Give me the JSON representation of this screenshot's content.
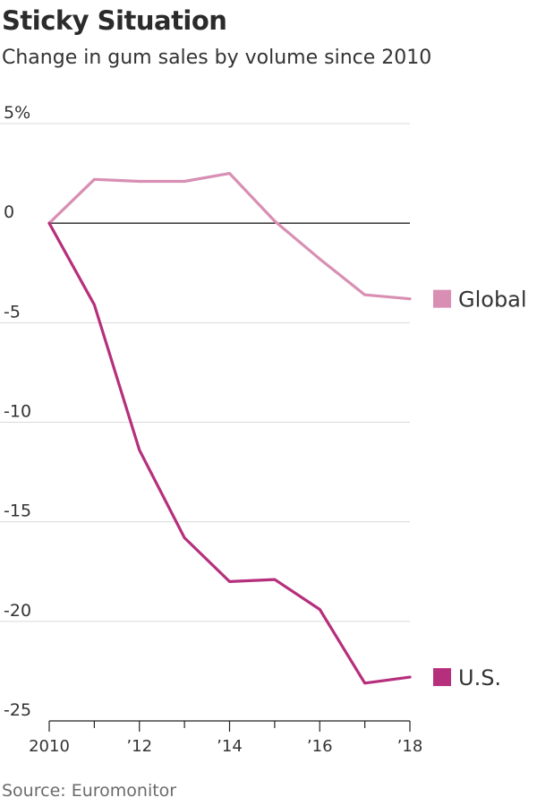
{
  "title": "Sticky Situation",
  "subtitle": "Change in gum sales by volume since 2010",
  "source": "Source: Euromonitor",
  "chart_data": {
    "type": "line",
    "title": "Sticky Situation",
    "subtitle": "Change in gum sales by volume since 2010",
    "x": [
      2010,
      2011,
      2012,
      2013,
      2014,
      2015,
      2016,
      2017,
      2018
    ],
    "x_tick_values": [
      2010,
      2012,
      2014,
      2016,
      2018
    ],
    "x_tick_labels": [
      "2010",
      "’12",
      "’14",
      "’16",
      "’18"
    ],
    "y_tick_values": [
      5,
      0,
      -5,
      -10,
      -15,
      -20,
      -25
    ],
    "y_tick_labels": [
      "5%",
      "0",
      "-5",
      "-10",
      "-15",
      "-20",
      "-25"
    ],
    "ylim": [
      -25,
      5
    ],
    "grid": true,
    "legend_placement": "right",
    "series": [
      {
        "name": "Global",
        "color": "#d88fb3",
        "values": [
          0,
          2.2,
          2.1,
          2.1,
          2.5,
          0.1,
          -1.8,
          -3.6,
          -3.8
        ]
      },
      {
        "name": "U.S.",
        "color": "#b62f7c",
        "values": [
          0,
          -4.1,
          -11.4,
          -15.8,
          -18.0,
          -17.9,
          -19.4,
          -23.1,
          -22.8
        ]
      }
    ]
  }
}
